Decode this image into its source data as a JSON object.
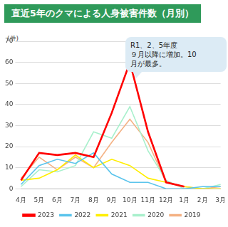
{
  "chart_data": {
    "type": "line",
    "title": "直近5年のクマによる人身被害件数（月別）",
    "y_label": "(件)",
    "annotation": "R1、2、5年度\n９月以降に増加。10\n月が最多。",
    "categories": [
      "4月",
      "5月",
      "6月",
      "7月",
      "8月",
      "9月",
      "10月",
      "11月",
      "12月",
      "1月",
      "2月",
      "3月"
    ],
    "series": [
      {
        "name": "2019",
        "color": "#f4b183",
        "values": [
          5,
          15,
          9,
          15,
          10,
          22,
          33,
          22,
          3,
          1,
          0,
          1
        ]
      },
      {
        "name": "2020",
        "color": "#a8f0cc",
        "values": [
          1,
          9,
          8,
          11,
          27,
          24,
          39,
          18,
          4,
          0,
          0,
          2
        ]
      },
      {
        "name": "2021",
        "color": "#ffee00",
        "values": [
          4,
          5,
          9,
          16,
          10,
          14,
          11,
          5,
          3,
          1,
          0,
          0
        ]
      },
      {
        "name": "2022",
        "color": "#5bc4ec",
        "values": [
          2,
          11,
          14,
          12,
          17,
          7,
          3,
          3,
          0,
          0,
          1,
          1
        ]
      },
      {
        "name": "2023",
        "color": "#ff0000",
        "values": [
          4,
          17,
          16,
          17,
          15,
          36,
          60,
          27,
          3,
          1,
          null,
          null
        ]
      }
    ],
    "ylim": [
      0,
      70
    ],
    "yticks": [
      0,
      10,
      20,
      30,
      40,
      50,
      60,
      70
    ],
    "grid": true,
    "legend": "bottom"
  }
}
